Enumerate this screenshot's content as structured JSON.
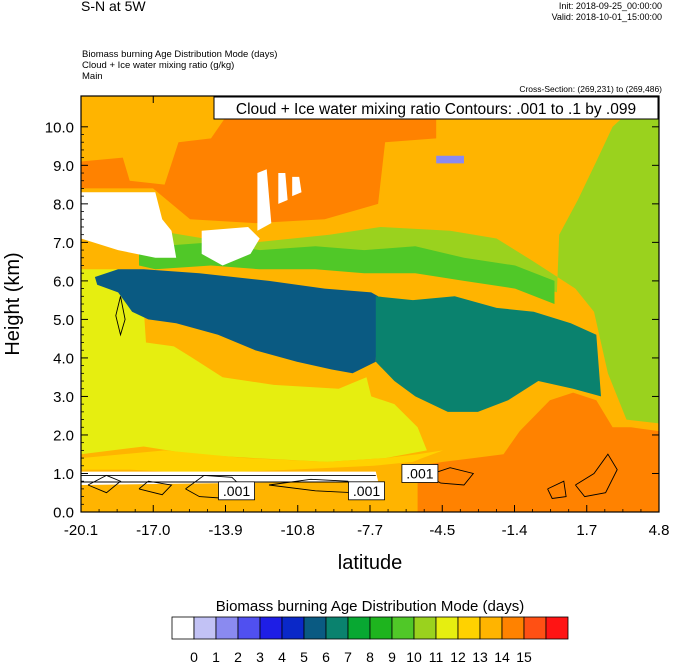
{
  "header": {
    "title": "S-N at 5W",
    "init": "Init: 2018-09-25_00:00:00",
    "valid": "Valid: 2018-10-01_15:00:00",
    "fields": [
      "Biomass burning Age Distribution Mode   (days)",
      "Cloud + Ice water mixing ratio   (g/kg)",
      "Main"
    ],
    "cross_section": "Cross-Section: (269,231) to (269,486)"
  },
  "chart_data": {
    "type": "heatmap",
    "title": "Cloud + Ice water mixing ratio Contours: .001 to .1 by .099",
    "xlabel": "latitude",
    "ylabel": "Height (km)",
    "xlim": [
      -20.1,
      4.8
    ],
    "ylim": [
      0.0,
      10.8
    ],
    "xticks": [
      "-20.1",
      "-17.0",
      "-13.9",
      "-10.8",
      "-7.7",
      "-4.5",
      "-1.4",
      "1.7",
      "4.8"
    ],
    "yticks": [
      "0.0",
      "1.0",
      "2.0",
      "3.0",
      "4.0",
      "5.0",
      "6.0",
      "7.0",
      "8.0",
      "9.0",
      "10.0"
    ],
    "contour_labels": [
      {
        "text": ".001",
        "lat": -13.4,
        "height": 0.55
      },
      {
        "text": ".001",
        "lat": -7.8,
        "height": 0.55
      },
      {
        "text": ".001",
        "lat": -5.5,
        "height": 1.0
      }
    ],
    "colorbar": {
      "label": "Biomass burning Age Distribution Mode  (days)",
      "ticks": [
        "0",
        "1",
        "2",
        "3",
        "4",
        "5",
        "6",
        "7",
        "8",
        "9",
        "10",
        "11",
        "12",
        "13",
        "14",
        "15"
      ],
      "colors": [
        "#ffffff",
        "#c2c2f5",
        "#8a8af0",
        "#5050f0",
        "#1e1ee6",
        "#0a28c8",
        "#0a5a82",
        "#0a826e",
        "#08a832",
        "#1eb41e",
        "#50c828",
        "#9ad21e",
        "#e6ee10",
        "#ffd200",
        "#ffb400",
        "#ff8200",
        "#ff5014",
        "#ff1414"
      ]
    },
    "regions": [
      {
        "name": "upper",
        "value": 13,
        "poly": [
          [
            -20.1,
            10.8
          ],
          [
            4.8,
            10.8
          ],
          [
            4.8,
            0
          ],
          [
            -20.1,
            0
          ]
        ]
      },
      {
        "name": "top-orange",
        "value": 14,
        "poly": [
          [
            -20.1,
            10.8
          ],
          [
            -4.8,
            10.8
          ],
          [
            -4.8,
            9.7
          ],
          [
            -7.0,
            9.6
          ],
          [
            -7.3,
            8.0
          ],
          [
            -9.6,
            7.6
          ],
          [
            -12.6,
            7.5
          ],
          [
            -15.4,
            7.6
          ],
          [
            -17.0,
            8.4
          ],
          [
            -20.1,
            8.4
          ],
          [
            -20.1,
            9.1
          ],
          [
            -18.3,
            9.2
          ],
          [
            -18.0,
            8.6
          ],
          [
            -16.5,
            8.5
          ],
          [
            -15.9,
            9.6
          ],
          [
            -14.5,
            9.7
          ],
          [
            -13.7,
            10.4
          ],
          [
            -13.6,
            10.8
          ]
        ]
      },
      {
        "name": "right-green",
        "value": 10,
        "poly": [
          [
            4.8,
            10.8
          ],
          [
            4.8,
            2.3
          ],
          [
            3.4,
            2.4
          ],
          [
            2.6,
            3.6
          ],
          [
            2.0,
            5.2
          ],
          [
            1.2,
            5.8
          ],
          [
            -0.6,
            6.5
          ],
          [
            -2.2,
            7.1
          ],
          [
            -4.2,
            7.3
          ],
          [
            -7.2,
            7.4
          ],
          [
            -9.4,
            7.2
          ],
          [
            -12.6,
            7.0
          ],
          [
            -14.8,
            7.1
          ],
          [
            -16.8,
            7.3
          ],
          [
            -17.6,
            7.2
          ],
          [
            -17.6,
            6.8
          ],
          [
            -16.9,
            6.6
          ],
          [
            -14.5,
            6.8
          ],
          [
            -12.4,
            6.5
          ],
          [
            -10.0,
            6.6
          ],
          [
            -7.9,
            6.5
          ],
          [
            -5.7,
            6.6
          ],
          [
            -3.6,
            6.3
          ],
          [
            -1.4,
            6.1
          ],
          [
            0.4,
            5.7
          ],
          [
            0.5,
            7.2
          ],
          [
            1.3,
            8.1
          ],
          [
            2.1,
            9.1
          ],
          [
            2.8,
            10.0
          ],
          [
            3.9,
            10.6
          ]
        ]
      },
      {
        "name": "upper-green",
        "value": 9,
        "poly": [
          [
            -17.6,
            6.8
          ],
          [
            -16.8,
            6.9
          ],
          [
            -14.5,
            7.0
          ],
          [
            -12.4,
            6.8
          ],
          [
            -10.0,
            6.9
          ],
          [
            -7.9,
            6.8
          ],
          [
            -5.7,
            6.9
          ],
          [
            -3.6,
            6.6
          ],
          [
            -1.4,
            6.4
          ],
          [
            0.3,
            6.0
          ],
          [
            0.3,
            5.4
          ],
          [
            -1.4,
            5.8
          ],
          [
            -3.6,
            6.0
          ],
          [
            -5.7,
            6.2
          ],
          [
            -7.9,
            6.2
          ],
          [
            -10.0,
            6.3
          ],
          [
            -12.4,
            6.3
          ],
          [
            -14.5,
            6.4
          ],
          [
            -16.9,
            6.3
          ],
          [
            -17.6,
            6.4
          ]
        ]
      },
      {
        "name": "left-yellowgreen",
        "value": 11,
        "poly": [
          [
            -20.1,
            6.3
          ],
          [
            -18.4,
            6.3
          ],
          [
            -17.4,
            5.3
          ],
          [
            -17.3,
            4.4
          ],
          [
            -16.1,
            4.3
          ],
          [
            -15.3,
            4.0
          ],
          [
            -14.0,
            3.5
          ],
          [
            -11.8,
            3.3
          ],
          [
            -9.0,
            3.2
          ],
          [
            -7.8,
            3.5
          ],
          [
            -7.6,
            3.0
          ],
          [
            -6.6,
            2.8
          ],
          [
            -5.6,
            2.2
          ],
          [
            -5.2,
            1.6
          ],
          [
            -7.0,
            1.4
          ],
          [
            -9.5,
            1.3
          ],
          [
            -12.6,
            1.4
          ],
          [
            -15.3,
            1.5
          ],
          [
            -17.4,
            1.7
          ],
          [
            -20.1,
            1.5
          ]
        ]
      },
      {
        "name": "core-blue",
        "value": 5,
        "poly": [
          [
            -19.5,
            6.1
          ],
          [
            -18.5,
            6.3
          ],
          [
            -17.4,
            6.3
          ],
          [
            -15.0,
            6.2
          ],
          [
            -12.0,
            6.0
          ],
          [
            -9.6,
            5.8
          ],
          [
            -7.6,
            5.7
          ],
          [
            -7.3,
            5.6
          ],
          [
            -7.4,
            3.9
          ],
          [
            -8.4,
            3.6
          ],
          [
            -9.3,
            3.7
          ],
          [
            -10.8,
            3.9
          ],
          [
            -12.6,
            4.2
          ],
          [
            -14.2,
            4.6
          ],
          [
            -16.0,
            4.9
          ],
          [
            -17.2,
            5.0
          ],
          [
            -17.9,
            5.2
          ],
          [
            -18.5,
            5.7
          ],
          [
            -19.4,
            5.9
          ]
        ]
      },
      {
        "name": "right-teal",
        "value": 6,
        "poly": [
          [
            -7.4,
            5.6
          ],
          [
            -5.8,
            5.5
          ],
          [
            -4.0,
            5.6
          ],
          [
            -2.2,
            5.3
          ],
          [
            -0.6,
            5.2
          ],
          [
            1.0,
            4.9
          ],
          [
            2.1,
            4.6
          ],
          [
            2.3,
            3.0
          ],
          [
            1.1,
            3.2
          ],
          [
            -0.4,
            3.4
          ],
          [
            -1.7,
            2.9
          ],
          [
            -3.0,
            2.6
          ],
          [
            -4.3,
            2.6
          ],
          [
            -5.7,
            3.0
          ],
          [
            -6.6,
            3.4
          ],
          [
            -7.4,
            3.9
          ]
        ]
      },
      {
        "name": "low-band",
        "value": 12,
        "poly": [
          [
            -20.1,
            1.4
          ],
          [
            -16.5,
            1.6
          ],
          [
            -13.0,
            1.4
          ],
          [
            -9.5,
            1.3
          ],
          [
            -7.0,
            1.4
          ],
          [
            -5.6,
            1.5
          ],
          [
            -4.5,
            1.6
          ],
          [
            -5.4,
            1.4
          ],
          [
            -5.8,
            1.3
          ],
          [
            -7.5,
            1.2
          ],
          [
            -11.0,
            1.1
          ],
          [
            -15.0,
            1.0
          ],
          [
            -18.0,
            1.1
          ],
          [
            -20.1,
            1.1
          ]
        ]
      },
      {
        "name": "bottom-orange",
        "value": 14,
        "poly": [
          [
            -5.6,
            1.2
          ],
          [
            -4.5,
            1.3
          ],
          [
            -3.2,
            1.4
          ],
          [
            -1.9,
            1.5
          ],
          [
            -1.2,
            2.1
          ],
          [
            0.1,
            2.9
          ],
          [
            1.1,
            3.1
          ],
          [
            2.1,
            2.9
          ],
          [
            2.8,
            2.2
          ],
          [
            3.6,
            2.2
          ],
          [
            4.8,
            2.1
          ],
          [
            4.8,
            0
          ],
          [
            -5.6,
            0
          ]
        ]
      },
      {
        "name": "top-lavender",
        "value": 1,
        "poly": [
          [
            -4.8,
            9.25
          ],
          [
            -3.6,
            9.25
          ],
          [
            -3.6,
            9.05
          ],
          [
            -4.8,
            9.05
          ]
        ]
      }
    ],
    "white_patches": [
      {
        "value": 0,
        "poly": [
          [
            -20.1,
            8.3
          ],
          [
            -16.9,
            8.3
          ],
          [
            -16.6,
            7.6
          ],
          [
            -16.2,
            7.3
          ],
          [
            -16.0,
            6.6
          ],
          [
            -16.9,
            6.6
          ],
          [
            -18.5,
            6.8
          ],
          [
            -20.1,
            7.1
          ]
        ]
      },
      {
        "value": 0,
        "poly": [
          [
            -14.9,
            7.3
          ],
          [
            -12.9,
            7.4
          ],
          [
            -12.4,
            7.1
          ],
          [
            -12.8,
            6.7
          ],
          [
            -14.0,
            6.4
          ],
          [
            -14.9,
            6.7
          ]
        ]
      },
      {
        "value": 0,
        "poly": [
          [
            -12.5,
            8.8
          ],
          [
            -12.1,
            8.9
          ],
          [
            -11.9,
            7.5
          ],
          [
            -12.5,
            7.3
          ]
        ]
      },
      {
        "value": 0,
        "poly": [
          [
            -11.6,
            8.8
          ],
          [
            -11.3,
            8.8
          ],
          [
            -11.2,
            8.1
          ],
          [
            -11.6,
            8.0
          ]
        ]
      },
      {
        "value": 0,
        "poly": [
          [
            -11.0,
            8.7
          ],
          [
            -10.7,
            8.7
          ],
          [
            -10.6,
            8.3
          ],
          [
            -11.0,
            8.2
          ]
        ]
      },
      {
        "value": 0,
        "poly": [
          [
            -20.1,
            1.05
          ],
          [
            -7.4,
            1.05
          ],
          [
            -7.3,
            0.8
          ],
          [
            -20.1,
            0.7
          ]
        ]
      }
    ]
  }
}
